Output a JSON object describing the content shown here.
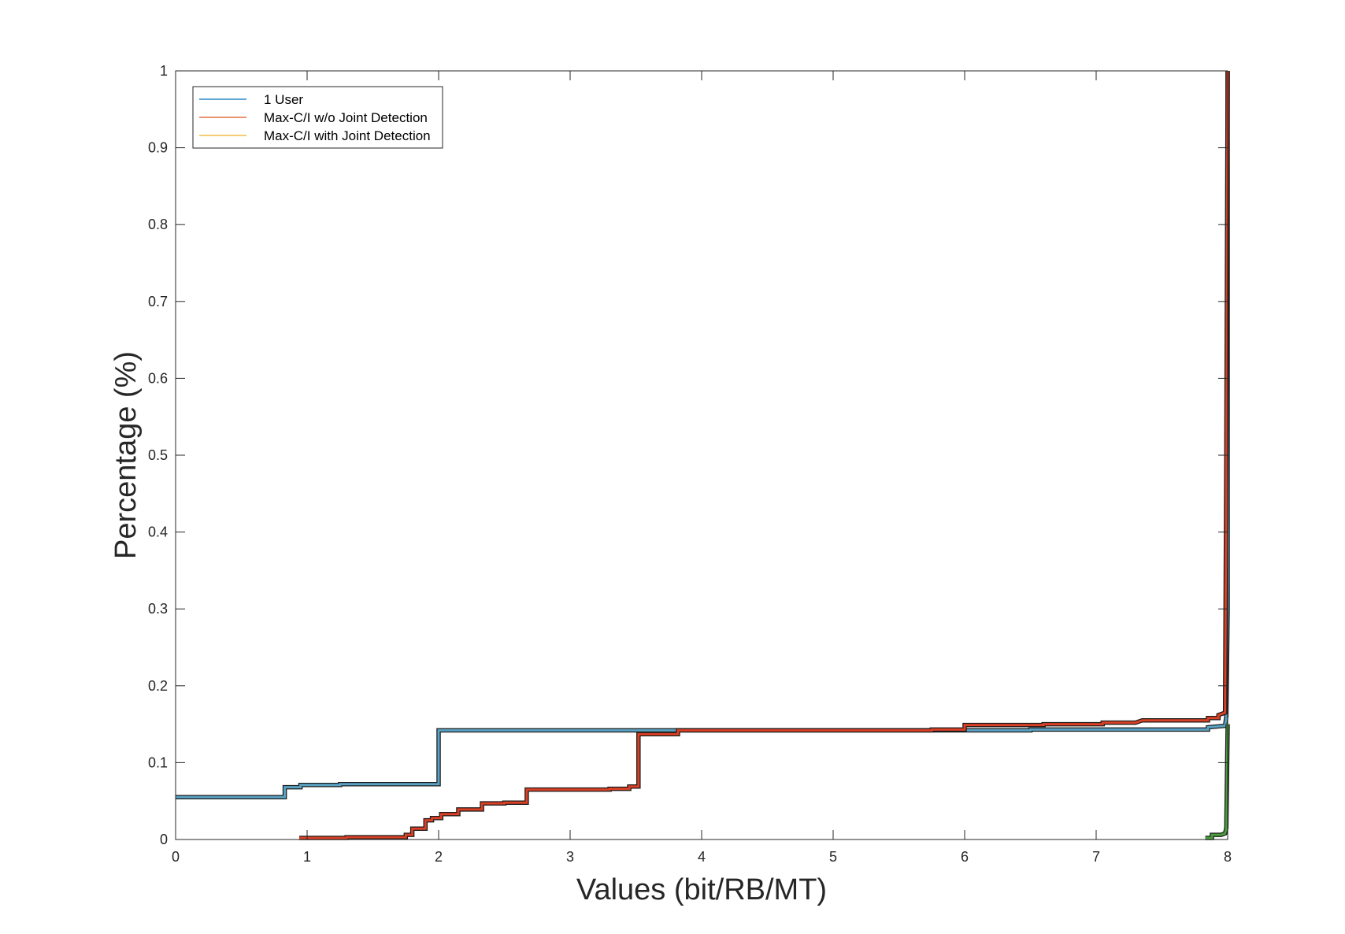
{
  "chart_data": {
    "type": "line",
    "title": "",
    "xlabel": "Values (bit/RB/MT)",
    "ylabel": "Percentage (%)",
    "xlim": [
      0,
      8
    ],
    "ylim": [
      0,
      1
    ],
    "xticks": [
      0,
      1,
      2,
      3,
      4,
      5,
      6,
      7,
      8
    ],
    "yticks": [
      0,
      0.1,
      0.2,
      0.3,
      0.4,
      0.5,
      0.6,
      0.7,
      0.8,
      0.9,
      1
    ],
    "grid": false,
    "legend_position": "top-left",
    "series": [
      {
        "name": "1 User",
        "color": "#5aa3c4",
        "points": [
          [
            0,
            0.055
          ],
          [
            0.83,
            0.055
          ],
          [
            0.83,
            0.068
          ],
          [
            0.95,
            0.068
          ],
          [
            0.95,
            0.071
          ],
          [
            1.25,
            0.071
          ],
          [
            1.25,
            0.072
          ],
          [
            2.0,
            0.072
          ],
          [
            2.0,
            0.142
          ],
          [
            6.5,
            0.142
          ],
          [
            6.5,
            0.143
          ],
          [
            7.5,
            0.143
          ],
          [
            7.85,
            0.143
          ],
          [
            7.85,
            0.146
          ],
          [
            7.98,
            0.148
          ],
          [
            7.99,
            0.16
          ],
          [
            8.0,
            0.3
          ],
          [
            8.0,
            1.0
          ]
        ]
      },
      {
        "name": "Max-C/I w/o Joint Detection",
        "color": "#d94025",
        "points": [
          [
            0.94,
            0.002
          ],
          [
            1.3,
            0.002
          ],
          [
            1.3,
            0.003
          ],
          [
            1.75,
            0.003
          ],
          [
            1.75,
            0.006
          ],
          [
            1.8,
            0.006
          ],
          [
            1.8,
            0.014
          ],
          [
            1.9,
            0.014
          ],
          [
            1.9,
            0.025
          ],
          [
            1.95,
            0.025
          ],
          [
            1.95,
            0.028
          ],
          [
            2.02,
            0.028
          ],
          [
            2.02,
            0.033
          ],
          [
            2.15,
            0.033
          ],
          [
            2.15,
            0.039
          ],
          [
            2.33,
            0.039
          ],
          [
            2.33,
            0.047
          ],
          [
            2.5,
            0.047
          ],
          [
            2.5,
            0.048
          ],
          [
            2.67,
            0.048
          ],
          [
            2.67,
            0.065
          ],
          [
            3.3,
            0.065
          ],
          [
            3.3,
            0.066
          ],
          [
            3.45,
            0.066
          ],
          [
            3.45,
            0.069
          ],
          [
            3.52,
            0.069
          ],
          [
            3.52,
            0.137
          ],
          [
            3.82,
            0.137
          ],
          [
            3.82,
            0.142
          ],
          [
            5.75,
            0.142
          ],
          [
            5.75,
            0.143
          ],
          [
            6.0,
            0.143
          ],
          [
            6.0,
            0.149
          ],
          [
            6.6,
            0.149
          ],
          [
            6.6,
            0.15
          ],
          [
            7.05,
            0.15
          ],
          [
            7.05,
            0.152
          ],
          [
            7.3,
            0.152
          ],
          [
            7.35,
            0.155
          ],
          [
            7.85,
            0.155
          ],
          [
            7.85,
            0.158
          ],
          [
            7.93,
            0.158
          ],
          [
            7.93,
            0.162
          ],
          [
            7.98,
            0.165
          ],
          [
            7.99,
            0.5
          ],
          [
            8.0,
            1.0
          ]
        ]
      },
      {
        "name": "Max-C/I with Joint Detection",
        "color": "#4a9e3c",
        "points": [
          [
            7.83,
            0.002
          ],
          [
            7.88,
            0.002
          ],
          [
            7.88,
            0.006
          ],
          [
            7.95,
            0.006
          ],
          [
            7.98,
            0.008
          ],
          [
            7.99,
            0.015
          ],
          [
            8.0,
            0.15
          ]
        ]
      }
    ]
  }
}
